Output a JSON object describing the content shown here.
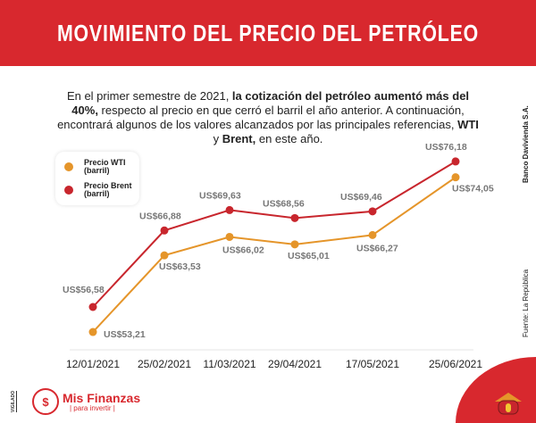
{
  "header": {
    "title": "MOVIMIENTO DEL PRECIO DEL PETRÓLEO"
  },
  "intro": {
    "p1": "En el primer semestre de 2021, ",
    "b1": "la cotización del petróleo aumentó más del 40%,",
    "p2": " respecto al precio en que cerró el barril el año anterior. A continuación, encontrará algunos de los valores alcanzados por las principales referencias, ",
    "b2": "WTI",
    "p3": " y ",
    "b3": "Brent,",
    "p4": " en este año."
  },
  "side": {
    "credit": "Banco Davivienda S.A.",
    "source": "Fuente:  La República",
    "vigilado": "VIGILADO"
  },
  "logo": {
    "main": "Mis Finanzas",
    "sub": "| para invertir |",
    "symbol": "$"
  },
  "colors": {
    "brand": "#d8282e",
    "wti": "#e5952a",
    "brent": "#c8262d"
  },
  "chart_data": {
    "type": "line",
    "categories": [
      "12/01/2021",
      "25/02/2021",
      "11/03/2021",
      "29/04/2021",
      "17/05/2021",
      "25/06/2021"
    ],
    "series": [
      {
        "name": "Precio WTI (barril)",
        "values": [
          53.21,
          63.53,
          66.02,
          65.01,
          66.27,
          74.05
        ],
        "labels": [
          "US$53,21",
          "US$63,53",
          "US$66,02",
          "US$65,01",
          "US$66,27",
          "US$74,05"
        ]
      },
      {
        "name": "Precio Brent (barril)",
        "values": [
          56.58,
          66.88,
          69.63,
          68.56,
          69.46,
          76.18
        ],
        "labels": [
          "US$56,58",
          "US$66,88",
          "US$69,63",
          "US$68,56",
          "US$69,46",
          "US$76,18"
        ]
      }
    ],
    "legend": "top-left",
    "grid": false,
    "units": "US$"
  }
}
